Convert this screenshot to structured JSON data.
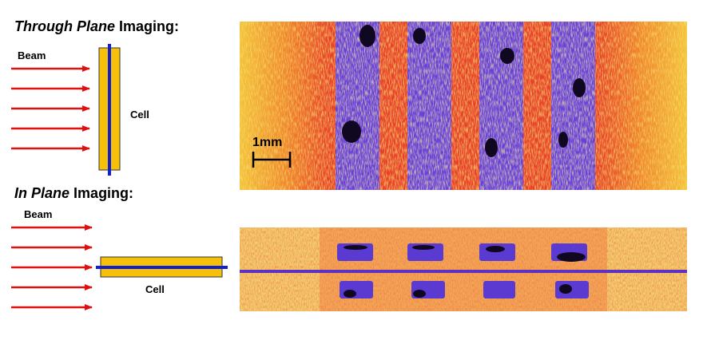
{
  "through_plane": {
    "title_italic": "Through Plane",
    "title_rest": "Imaging:",
    "beam_label": "Beam",
    "cell_label": "Cell",
    "scale_label": "1mm"
  },
  "in_plane": {
    "title_italic": "In Plane",
    "title_rest": "Imaging:",
    "beam_label": "Beam",
    "cell_label": "Cell"
  }
}
